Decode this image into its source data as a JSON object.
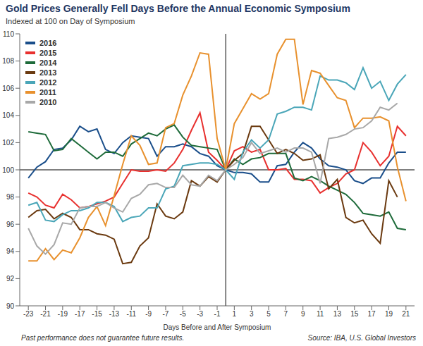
{
  "chart_data": {
    "type": "line",
    "title": "Gold Prices Generally Fell Days Before the Annual Economic Symposium",
    "subtitle": "Indexed at 100 on Day of Symposium",
    "x_label": "Days Before and After Symposium",
    "source": "Source: IBA, U.S. Global Investors",
    "footnote": "Past performance does not guarantee future results.",
    "x": [
      -23,
      -22,
      -21,
      -20,
      -19,
      -18,
      -17,
      -16,
      -15,
      -14,
      -13,
      -12,
      -11,
      -10,
      -9,
      -8,
      -7,
      -6,
      -5,
      -4,
      -3,
      -2,
      -1,
      0,
      1,
      2,
      3,
      4,
      5,
      6,
      7,
      8,
      9,
      10,
      11,
      12,
      13,
      14,
      15,
      16,
      17,
      18,
      19,
      20,
      21
    ],
    "xlim": [
      -24,
      22
    ],
    "xticks": [
      -23,
      -21,
      -19,
      -17,
      -15,
      -13,
      -11,
      -9,
      -7,
      -5,
      -3,
      -1,
      1,
      3,
      5,
      7,
      9,
      11,
      13,
      15,
      17,
      19,
      21
    ],
    "ylim": [
      90,
      110
    ],
    "yticks": [
      90,
      92,
      94,
      96,
      98,
      100,
      102,
      104,
      106,
      108,
      110
    ],
    "grid": false,
    "legend": "top-left",
    "reference_lines": {
      "x": 0,
      "y": 100
    },
    "series": [
      {
        "name": "2016",
        "color": "#1a4e8a",
        "values": [
          99.4,
          100.2,
          100.6,
          101.5,
          101.6,
          102.2,
          103.2,
          102.8,
          103.0,
          101.5,
          101.2,
          102.0,
          102.5,
          102.4,
          102.3,
          101.0,
          101.7,
          101.7,
          101.9,
          101.7,
          101.2,
          101.0,
          100.3,
          100,
          99.8,
          99.8,
          99.7,
          99.1,
          99.1,
          100.3,
          100.4,
          101.3,
          102.0,
          101.6,
          100.8,
          100.3,
          100.2,
          100.0,
          99.2,
          99.0,
          99.4,
          99.4,
          100.5,
          101.3,
          101.3
        ]
      },
      {
        "name": "2015",
        "color": "#e8312f",
        "values": [
          98.3,
          98.0,
          97.4,
          97.2,
          98.2,
          97.8,
          97.2,
          97.3,
          97.5,
          97.7,
          98.0,
          99.0,
          100.0,
          99.9,
          99.9,
          100.0,
          99.9,
          100.5,
          101.5,
          102.9,
          104.2,
          101.3,
          100.7,
          100,
          101.4,
          101.7,
          101.3,
          101.5,
          100.0,
          100.0,
          100.1,
          99.3,
          99.3,
          99.2,
          98.3,
          98.7,
          99.0,
          99.7,
          100.0,
          102.0,
          101.3,
          100.3,
          101.0,
          103.2,
          102.5
        ]
      },
      {
        "name": "2014",
        "color": "#1e6b3a",
        "values": [
          102.8,
          102.7,
          102.6,
          101.4,
          101.5,
          102.3,
          101.8,
          101.3,
          100.8,
          101.3,
          101.3,
          101.0,
          101.9,
          102.3,
          102.7,
          102.5,
          103.0,
          103.3,
          102.4,
          101.8,
          101.7,
          101.6,
          101.5,
          100,
          100.8,
          100.4,
          100.8,
          100.9,
          101.2,
          101.2,
          101.2,
          99.4,
          99.2,
          99.5,
          99.2,
          98.8,
          98.5,
          98.2,
          97.6,
          96.8,
          96.7,
          96.6,
          96.9,
          95.7,
          95.6
        ]
      },
      {
        "name": "2013",
        "color": "#6b3a10",
        "values": [
          96.5,
          97.0,
          97.1,
          96.4,
          96.8,
          96.5,
          95.6,
          95.6,
          95.3,
          95.2,
          94.9,
          93.1,
          93.2,
          94.4,
          95.0,
          97.5,
          96.6,
          96.4,
          96.9,
          99.2,
          98.8,
          99.5,
          99.1,
          100,
          100.7,
          101.2,
          103.2,
          103.2,
          102.2,
          101.2,
          101.5,
          101.2,
          100.7,
          100.8,
          101.1,
          98.6,
          99.3,
          96.5,
          96.1,
          96.3,
          95.3,
          94.6,
          99.2,
          98.0,
          null
        ]
      },
      {
        "name": "2012",
        "color": "#4aa6b8",
        "values": [
          97.4,
          97.6,
          96.3,
          96.2,
          96.7,
          97.0,
          97.0,
          97.2,
          97.6,
          97.6,
          97.3,
          96.2,
          96.5,
          96.6,
          97.2,
          97.2,
          98.6,
          98.8,
          100.3,
          100.4,
          100.5,
          100.5,
          100.4,
          100,
          99.3,
          101.3,
          102.2,
          101.6,
          102.2,
          104.1,
          104.3,
          104.6,
          104.6,
          104.4,
          106.9,
          106.6,
          106.6,
          106.4,
          105.9,
          107.5,
          106.0,
          106.5,
          105.1,
          106.3,
          107.0
        ]
      },
      {
        "name": "2011",
        "color": "#e8912e",
        "values": [
          93.3,
          93.3,
          94.2,
          93.4,
          94.1,
          93.9,
          95.0,
          96.5,
          97.3,
          95.9,
          98.1,
          100.4,
          102.5,
          101.8,
          100.4,
          100.5,
          103.1,
          103.4,
          105.5,
          106.9,
          108.6,
          108.5,
          102.3,
          100,
          103.4,
          104.5,
          105.6,
          105.2,
          105.6,
          108.5,
          109.6,
          109.6,
          104.8,
          107.3,
          107.1,
          106.2,
          105.3,
          105.1,
          103.1,
          103.8,
          103.8,
          103.9,
          103.6,
          100.2,
          97.7
        ]
      },
      {
        "name": "2010",
        "color": "#a8a8a8",
        "values": [
          95.7,
          94.4,
          93.8,
          94.5,
          96.1,
          96.0,
          97.2,
          97.3,
          97.3,
          97.6,
          97.2,
          96.9,
          97.9,
          98.2,
          98.9,
          99.0,
          98.7,
          98.7,
          99.6,
          98.9,
          98.8,
          99.6,
          99.2,
          100,
          100.4,
          100.9,
          102.0,
          101.2,
          101.4,
          101.6,
          101.3,
          101.6,
          101.6,
          101.3,
          99.0,
          102.3,
          102.4,
          102.6,
          103.0,
          103.1,
          103.6,
          104.6,
          104.4,
          104.9,
          null
        ]
      }
    ]
  }
}
